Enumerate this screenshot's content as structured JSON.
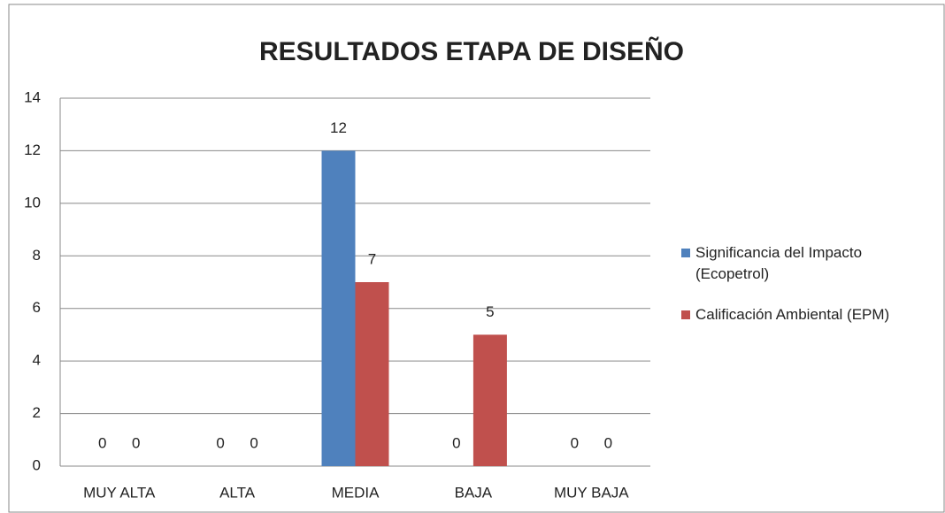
{
  "chart_data": {
    "type": "bar",
    "title": "RESULTADOS ETAPA DE DISEÑO",
    "categories": [
      "MUY ALTA",
      "ALTA",
      "MEDIA",
      "BAJA",
      "MUY BAJA"
    ],
    "series": [
      {
        "name": "Significancia del Impacto (Ecopetrol)",
        "color": "#4f81bd",
        "values": [
          0,
          0,
          12,
          0,
          0
        ]
      },
      {
        "name": "Calificación Ambiental (EPM)",
        "color": "#c0504d",
        "values": [
          0,
          0,
          7,
          5,
          0
        ]
      }
    ],
    "ylim": [
      0,
      14
    ],
    "yticks": [
      0,
      2,
      4,
      6,
      8,
      10,
      12,
      14
    ],
    "grid": true,
    "legend": "right"
  }
}
